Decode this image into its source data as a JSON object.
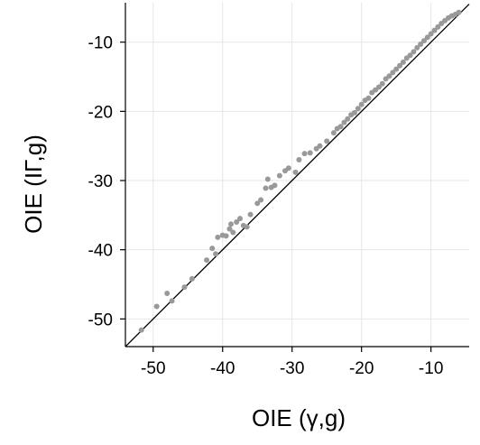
{
  "chart_data": {
    "type": "scatter",
    "title": "",
    "xlabel": "OIE (γ,g)",
    "ylabel": "OIE (IΓ,g)",
    "xlim": [
      -54,
      -4.5
    ],
    "ylim": [
      -54,
      -4.3
    ],
    "x_ticks": [
      -50,
      -40,
      -30,
      -20,
      -10
    ],
    "y_ticks": [
      -50,
      -40,
      -30,
      -20,
      -10
    ],
    "x_tick_labels": [
      "-50",
      "-40",
      "-30",
      "-20",
      "-10"
    ],
    "y_tick_labels": [
      "-50",
      "-40",
      "-30",
      "-20",
      "-10"
    ],
    "grid": true,
    "reference_line": {
      "slope": 1,
      "intercept": 0,
      "color": "#000000"
    },
    "point_color": "#999999",
    "series": [
      {
        "x": [
          -51.7,
          -49.5,
          -48.0,
          -47.3,
          -45.5,
          -44.4,
          -42.3,
          -41.5,
          -41.0,
          -40.7,
          -40.0,
          -39.5,
          -39.0,
          -38.8,
          -38.5,
          -38.0,
          -37.5,
          -37.0,
          -36.5,
          -36.0,
          -35.0,
          -34.5,
          -33.8,
          -33.5,
          -33.0,
          -32.5,
          -31.8,
          -31.0,
          -30.5,
          -29.5,
          -29.0,
          -28.2,
          -27.4,
          -26.5,
          -26.0,
          -25.0,
          -24.0,
          -23.5,
          -23.0,
          -22.5,
          -22.0,
          -21.5,
          -21.0,
          -20.5,
          -20.0,
          -19.5,
          -19.0,
          -18.5,
          -18.0,
          -17.5,
          -17.0,
          -16.5,
          -16.0,
          -15.5,
          -15.0,
          -14.5,
          -14.0,
          -13.5,
          -13.0,
          -12.5,
          -12.0,
          -11.5,
          -11.0,
          -10.5,
          -10.0,
          -9.5,
          -9.0,
          -8.5,
          -8.0,
          -7.5,
          -7.0,
          -6.5,
          -6.0
        ],
        "y": [
          -51.6,
          -48.2,
          -46.3,
          -47.4,
          -45.4,
          -44.2,
          -41.5,
          -39.8,
          -40.6,
          -38.2,
          -37.9,
          -38.0,
          -37.0,
          -36.3,
          -37.5,
          -36.0,
          -35.5,
          -36.5,
          -36.7,
          -34.9,
          -33.3,
          -32.8,
          -31.1,
          -29.8,
          -31.0,
          -30.7,
          -29.3,
          -28.6,
          -28.2,
          -28.8,
          -27.0,
          -26.1,
          -26.0,
          -25.4,
          -25.0,
          -24.3,
          -23.1,
          -22.5,
          -22.2,
          -21.6,
          -21.1,
          -20.5,
          -20.2,
          -19.6,
          -19.0,
          -18.4,
          -18.1,
          -17.3,
          -16.9,
          -16.5,
          -16.0,
          -15.3,
          -14.9,
          -14.4,
          -13.9,
          -13.4,
          -12.9,
          -12.3,
          -11.9,
          -11.4,
          -10.8,
          -10.3,
          -9.8,
          -9.3,
          -8.8,
          -8.3,
          -7.8,
          -7.3,
          -6.9,
          -6.5,
          -6.2,
          -6.0,
          -5.7
        ]
      }
    ]
  }
}
